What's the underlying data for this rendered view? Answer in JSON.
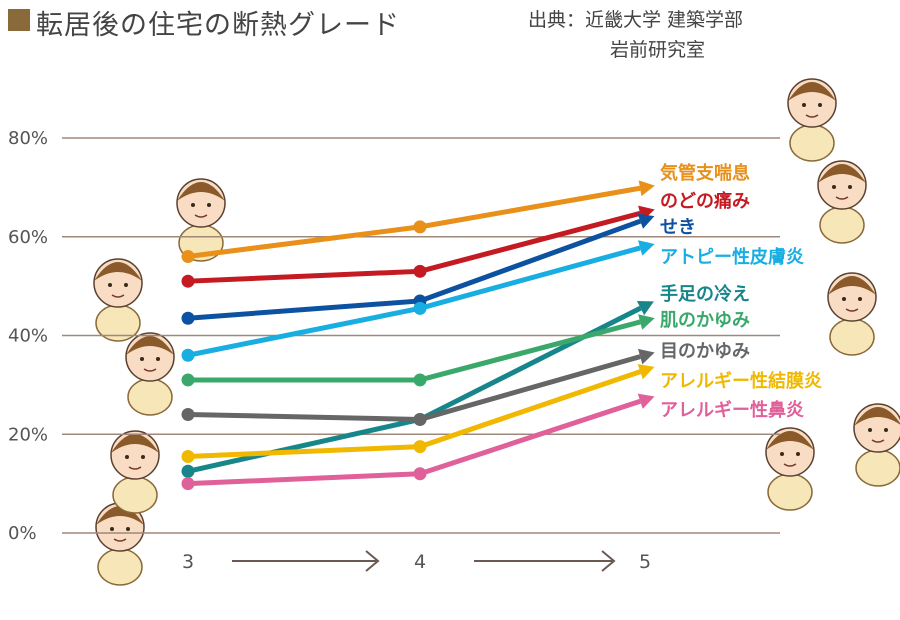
{
  "title": "転居後の住宅の断熱グレード",
  "source": {
    "label": "出典：",
    "line1": "近畿大学 建築学部",
    "line2": "岩前研究室"
  },
  "chart_data": {
    "type": "line",
    "title": "転居後の住宅の断熱グレード",
    "xlabel": "",
    "ylabel": "",
    "x": [
      "3",
      "4",
      "5"
    ],
    "ylim": [
      0,
      80
    ],
    "yticks": [
      "0%",
      "20%",
      "40%",
      "60%",
      "80%"
    ],
    "grid": true,
    "legend": "right-end labels",
    "series": [
      {
        "name": "気管支喘息",
        "color": "#e8901a",
        "values": [
          56,
          62,
          70
        ]
      },
      {
        "name": "のどの痛み",
        "color": "#c41a22",
        "values": [
          51,
          53,
          65
        ]
      },
      {
        "name": "せき",
        "color": "#0d52a0",
        "values": [
          43.5,
          47,
          63.5
        ]
      },
      {
        "name": "アトピー性皮膚炎",
        "color": "#18aee2",
        "values": [
          36,
          45.5,
          58
        ]
      },
      {
        "name": "手足の冷え",
        "color": "#16868a",
        "values": [
          12.5,
          23,
          46
        ]
      },
      {
        "name": "肌のかゆみ",
        "color": "#3aa86a",
        "values": [
          31,
          31,
          43
        ]
      },
      {
        "name": "目のかゆみ",
        "color": "#666666",
        "values": [
          24,
          23,
          36
        ]
      },
      {
        "name": "アレルギー性結膜炎",
        "color": "#f0b800",
        "values": [
          15.5,
          17.5,
          33
        ]
      },
      {
        "name": "アレルギー性鼻炎",
        "color": "#e0609a",
        "values": [
          10,
          12,
          27
        ]
      }
    ]
  }
}
